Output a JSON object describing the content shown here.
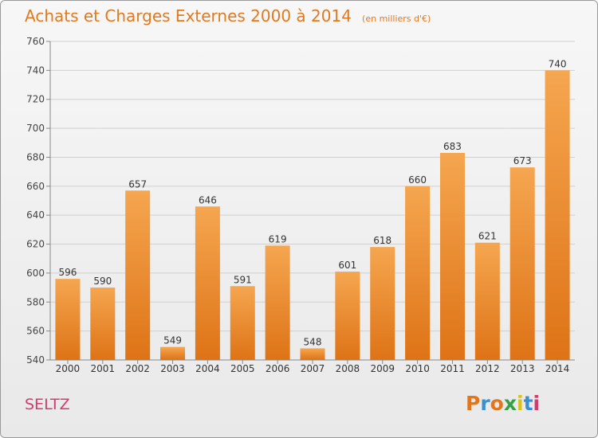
{
  "title": "Achats et Charges Externes 2000 à 2014",
  "subtitle": "(en milliers d'€)",
  "footer": {
    "commune": "SELTZ",
    "logo_text": "Proxiti"
  },
  "colors": {
    "bar_top": "#f5a650",
    "bar_bottom": "#de7316",
    "title": "#e07a1f",
    "commune": "#d43a6e",
    "logo": [
      "#e1761c",
      "#3a8fd0",
      "#e1761c",
      "#36a046",
      "#d9c21c",
      "#3a8fd0",
      "#d43a6e"
    ]
  },
  "chart_data": {
    "type": "bar",
    "title": "Achats et Charges Externes 2000 à 2014",
    "subtitle": "(en milliers d'€)",
    "categories": [
      "2000",
      "2001",
      "2002",
      "2003",
      "2004",
      "2005",
      "2006",
      "2007",
      "2008",
      "2009",
      "2010",
      "2011",
      "2012",
      "2013",
      "2014"
    ],
    "values": [
      596,
      590,
      657,
      549,
      646,
      591,
      619,
      548,
      601,
      618,
      660,
      683,
      621,
      673,
      740
    ],
    "ylim": [
      540,
      760
    ],
    "yticks": [
      540,
      560,
      580,
      600,
      620,
      640,
      660,
      680,
      700,
      720,
      740,
      760
    ],
    "grid": true,
    "data_labels": true
  }
}
